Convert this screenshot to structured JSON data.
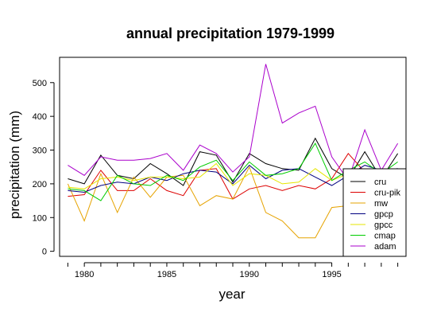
{
  "chart_data": {
    "type": "line",
    "title": "annual precipitation 1979-1999",
    "xlabel": "year",
    "ylabel": "precipitation (mm)",
    "xlim": [
      1978.5,
      1999.5
    ],
    "ylim": [
      -15,
      575
    ],
    "xticks": [
      1980,
      1985,
      1990,
      1995
    ],
    "yticks": [
      0,
      100,
      200,
      300,
      400,
      500
    ],
    "grid": false,
    "legend_position": "bottom-right",
    "x": [
      1979,
      1980,
      1981,
      1982,
      1983,
      1984,
      1985,
      1986,
      1987,
      1988,
      1989,
      1990,
      1991,
      1992,
      1993,
      1994,
      1995,
      1996,
      1997,
      1998,
      1999
    ],
    "series": [
      {
        "name": "cru",
        "color": "#000000",
        "values": [
          215,
          200,
          285,
          225,
          215,
          260,
          230,
          195,
          295,
          285,
          205,
          290,
          260,
          245,
          240,
          335,
          245,
          215,
          295,
          215,
          290
        ]
      },
      {
        "name": "cru-pik",
        "color": "#dd0000",
        "values": [
          163,
          168,
          240,
          180,
          180,
          215,
          180,
          165,
          240,
          245,
          155,
          185,
          195,
          180,
          195,
          185,
          215,
          290,
          235,
          210,
          235
        ]
      },
      {
        "name": "mw",
        "color": "#e6a300",
        "values": [
          200,
          90,
          230,
          115,
          220,
          160,
          220,
          225,
          135,
          165,
          155,
          250,
          115,
          90,
          40,
          40,
          130,
          135,
          240,
          175,
          220
        ]
      },
      {
        "name": "gpcp",
        "color": "#000080",
        "values": [
          180,
          175,
          195,
          205,
          200,
          220,
          210,
          230,
          240,
          235,
          200,
          255,
          215,
          240,
          245,
          220,
          195,
          225,
          255,
          240,
          245
        ]
      },
      {
        "name": "gpcc",
        "color": "#e6e600",
        "values": [
          190,
          185,
          215,
          220,
          210,
          220,
          220,
          215,
          220,
          260,
          195,
          230,
          225,
          200,
          205,
          245,
          210,
          230,
          230,
          215,
          235
        ]
      },
      {
        "name": "cmap",
        "color": "#00cc00",
        "values": [
          185,
          180,
          150,
          225,
          200,
          195,
          225,
          210,
          250,
          270,
          210,
          265,
          225,
          230,
          245,
          320,
          210,
          240,
          265,
          230,
          265
        ]
      },
      {
        "name": "adam",
        "color": "#aa00cc",
        "values": [
          255,
          225,
          280,
          270,
          270,
          275,
          290,
          240,
          315,
          290,
          235,
          280,
          555,
          380,
          410,
          430,
          280,
          210,
          360,
          240,
          320
        ]
      }
    ]
  }
}
